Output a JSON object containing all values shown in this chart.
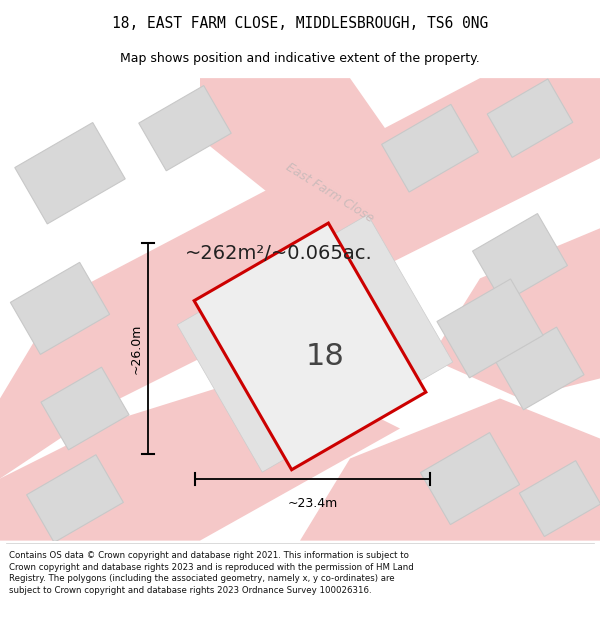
{
  "title_line1": "18, EAST FARM CLOSE, MIDDLESBROUGH, TS6 0NG",
  "title_line2": "Map shows position and indicative extent of the property.",
  "footer_text": "Contains OS data © Crown copyright and database right 2021. This information is subject to Crown copyright and database rights 2023 and is reproduced with the permission of HM Land Registry. The polygons (including the associated geometry, namely x, y co-ordinates) are subject to Crown copyright and database rights 2023 Ordnance Survey 100026316.",
  "area_label": "~262m²/~0.065ac.",
  "number_label": "18",
  "dim_horizontal": "~23.4m",
  "dim_vertical": "~26.0m",
  "map_bg": "#eeeeee",
  "property_fill": "#e8e8e8",
  "property_edge": "#cc0000",
  "road_color": "#f5c8c8",
  "road_edge": "none",
  "building_color": "#d8d8d8",
  "building_edge": "#c8c8c8",
  "street_label": "East Farm Close",
  "street_label_color": "#ccbbbb",
  "street_label_rotation": -32
}
